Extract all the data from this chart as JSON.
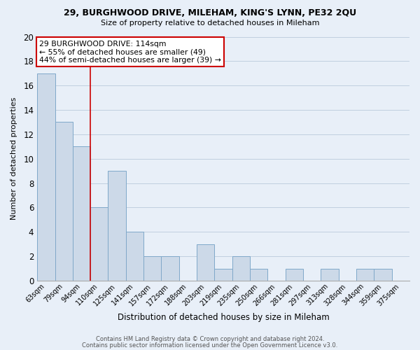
{
  "title1": "29, BURGHWOOD DRIVE, MILEHAM, KING'S LYNN, PE32 2QU",
  "title2": "Size of property relative to detached houses in Mileham",
  "xlabel": "Distribution of detached houses by size in Mileham",
  "ylabel": "Number of detached properties",
  "bar_labels": [
    "63sqm",
    "79sqm",
    "94sqm",
    "110sqm",
    "125sqm",
    "141sqm",
    "157sqm",
    "172sqm",
    "188sqm",
    "203sqm",
    "219sqm",
    "235sqm",
    "250sqm",
    "266sqm",
    "281sqm",
    "297sqm",
    "313sqm",
    "328sqm",
    "344sqm",
    "359sqm",
    "375sqm"
  ],
  "bar_values": [
    17,
    13,
    11,
    6,
    9,
    4,
    2,
    2,
    0,
    3,
    1,
    2,
    1,
    0,
    1,
    0,
    1,
    0,
    1,
    1,
    0
  ],
  "bar_color": "#ccd9e8",
  "bar_edge_color": "#7fa8c9",
  "bg_color": "#e8eff8",
  "grid_color": "#c0cfe0",
  "red_line_x": 2.5,
  "ylim": [
    0,
    20
  ],
  "yticks": [
    0,
    2,
    4,
    6,
    8,
    10,
    12,
    14,
    16,
    18,
    20
  ],
  "annotation_title": "29 BURGHWOOD DRIVE: 114sqm",
  "annotation_line1": "← 55% of detached houses are smaller (49)",
  "annotation_line2": "44% of semi-detached houses are larger (39) →",
  "annotation_box_color": "#ffffff",
  "annotation_box_edge": "#cc0000",
  "footer1": "Contains HM Land Registry data © Crown copyright and database right 2024.",
  "footer2": "Contains public sector information licensed under the Open Government Licence v3.0."
}
